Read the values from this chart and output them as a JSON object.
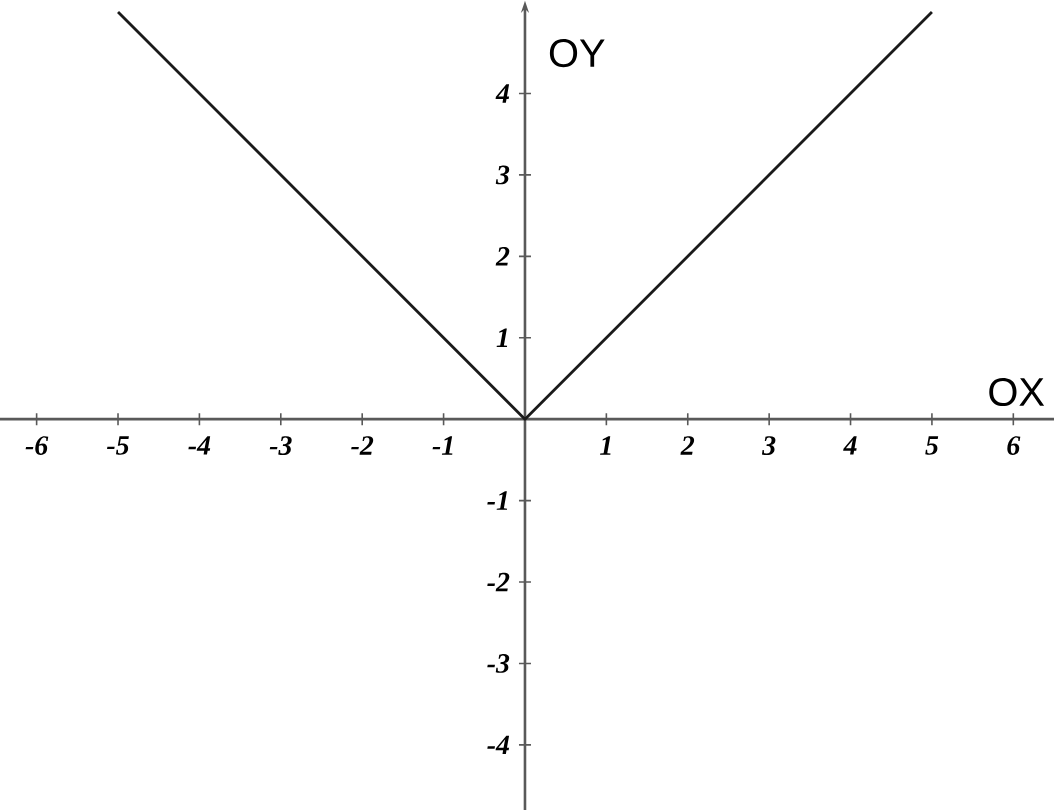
{
  "chart_data": {
    "type": "line",
    "xlabel": "OX",
    "ylabel": "OY",
    "x": [
      -5,
      0,
      5
    ],
    "series": [
      {
        "color": "#1a1a1a",
        "values": [
          5,
          0,
          5
        ]
      }
    ],
    "xlim": [
      -6.45,
      6.5
    ],
    "ylim": [
      -4.8,
      5.05
    ],
    "xticks": [
      -6,
      -5,
      -4,
      -3,
      -2,
      -1,
      1,
      2,
      3,
      4,
      5,
      6
    ],
    "yticks": [
      -4,
      -3,
      -2,
      -1,
      1,
      2,
      3,
      4
    ],
    "marker": "none",
    "line_style": "solid"
  }
}
